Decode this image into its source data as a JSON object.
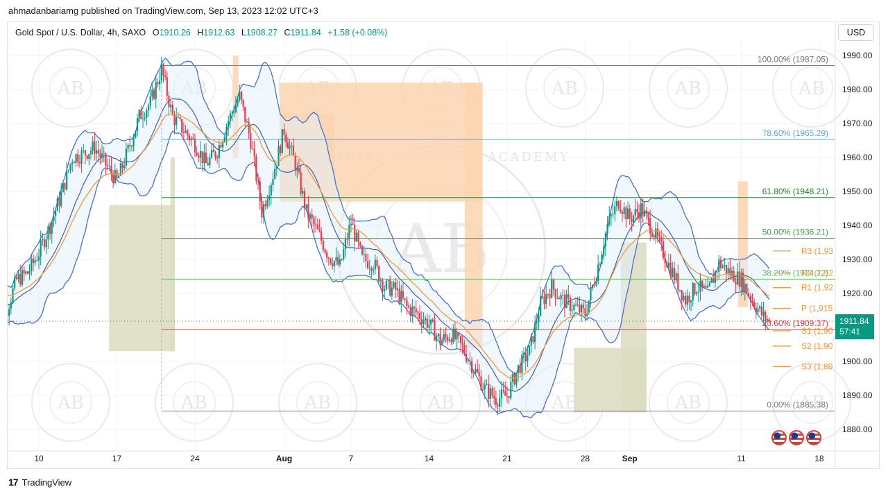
{
  "header": {
    "publish_line": "ahmadanbariamg published on TradingView.com, Sep 13, 2023 12:02 UTC+3"
  },
  "legend": {
    "symbol": "Gold Spot / U.S. Dollar, 4h, SAXO",
    "open_label": "O",
    "open": "1910.26",
    "high_label": "H",
    "high": "1912.63",
    "low_label": "L",
    "low": "1908.27",
    "close_label": "C",
    "close": "1911.84",
    "change": "+1.58 (+0.08%)"
  },
  "currency_button": "USD",
  "price_badge": {
    "price": "1911.84",
    "countdown": "57:41"
  },
  "footer": {
    "brand": "TradingView"
  },
  "watermark": {
    "initials": "AB",
    "name": "ARABIAN BUSINESS ACADEMY"
  },
  "colors": {
    "up": "#089981",
    "down": "#f23645",
    "bollinger": "#4a6fd1",
    "ema": "#f29a36",
    "supply_zone": "#fbd5b0",
    "demand_zone": "#dcdcc0",
    "pivot": "#f29a36"
  },
  "chart_data": {
    "type": "candlestick",
    "timeframe": "4h",
    "y_axis": {
      "min": 1875,
      "max": 1994,
      "ticks": [
        "1880.00",
        "1890.00",
        "1900.00",
        "1910.00",
        "1920.00",
        "1930.00",
        "1940.00",
        "1950.00",
        "1960.00",
        "1970.00",
        "1980.00",
        "1990.00"
      ]
    },
    "x_axis": {
      "labels": [
        {
          "text": "10",
          "day": 10
        },
        {
          "text": "17",
          "day": 17
        },
        {
          "text": "24",
          "day": 24
        },
        {
          "text": "Aug",
          "day": 32,
          "bold": true
        },
        {
          "text": "7",
          "day": 38
        },
        {
          "text": "14",
          "day": 45
        },
        {
          "text": "21",
          "day": 52
        },
        {
          "text": "28",
          "day": 59
        },
        {
          "text": "Sep",
          "day": 63,
          "bold": true
        },
        {
          "text": "11",
          "day": 73
        },
        {
          "text": "18",
          "day": 80
        }
      ]
    },
    "price_path": [
      [
        6,
        1922
      ],
      [
        7,
        1914
      ],
      [
        8,
        1924
      ],
      [
        9,
        1926
      ],
      [
        10,
        1932
      ],
      [
        11,
        1940
      ],
      [
        12,
        1949
      ],
      [
        13,
        1960
      ],
      [
        14,
        1961
      ],
      [
        15,
        1963
      ],
      [
        16,
        1958
      ],
      [
        17,
        1953
      ],
      [
        18,
        1962
      ],
      [
        19,
        1972
      ],
      [
        20,
        1976
      ],
      [
        21,
        1986
      ],
      [
        22,
        1972
      ],
      [
        23,
        1968
      ],
      [
        24,
        1964
      ],
      [
        25,
        1958
      ],
      [
        26,
        1962
      ],
      [
        27,
        1971
      ],
      [
        28,
        1978
      ],
      [
        29,
        1965
      ],
      [
        30,
        1944
      ],
      [
        31,
        1955
      ],
      [
        32,
        1968
      ],
      [
        33,
        1958
      ],
      [
        34,
        1944
      ],
      [
        35,
        1938
      ],
      [
        36,
        1931
      ],
      [
        37,
        1928
      ],
      [
        38,
        1941
      ],
      [
        39,
        1930
      ],
      [
        40,
        1929
      ],
      [
        41,
        1922
      ],
      [
        42,
        1921
      ],
      [
        43,
        1916
      ],
      [
        44,
        1914
      ],
      [
        45,
        1911
      ],
      [
        46,
        1906
      ],
      [
        47,
        1908
      ],
      [
        48,
        1904
      ],
      [
        49,
        1898
      ],
      [
        50,
        1892
      ],
      [
        51,
        1889
      ],
      [
        52,
        1890
      ],
      [
        53,
        1898
      ],
      [
        54,
        1903
      ],
      [
        55,
        1917
      ],
      [
        56,
        1922
      ],
      [
        57,
        1918
      ],
      [
        58,
        1916
      ],
      [
        59,
        1914
      ],
      [
        60,
        1926
      ],
      [
        61,
        1940
      ],
      [
        62,
        1947
      ],
      [
        63,
        1942
      ],
      [
        64,
        1945
      ],
      [
        65,
        1939
      ],
      [
        66,
        1932
      ],
      [
        67,
        1925
      ],
      [
        68,
        1918
      ],
      [
        69,
        1922
      ],
      [
        70,
        1920
      ],
      [
        71,
        1929
      ],
      [
        72,
        1926
      ],
      [
        73,
        1924
      ],
      [
        74,
        1918
      ],
      [
        75,
        1913
      ],
      [
        75.6,
        1912
      ]
    ],
    "fibonacci": [
      {
        "label": "100.00% (1987.05)",
        "price": 1987.05,
        "color": "#787b86"
      },
      {
        "label": "78.60% (1965.29)",
        "price": 1965.29,
        "color": "#5fa8d3"
      },
      {
        "label": "61.80% (1948.21)",
        "price": 1948.21,
        "color": "#2e7d32"
      },
      {
        "label": "50.00% (1936.21)",
        "price": 1936.21,
        "color": "#43a047"
      },
      {
        "label": "38.20% (1924.22)",
        "price": 1924.22,
        "color": "#66bb6a"
      },
      {
        "label": "23.60% (1909.37)",
        "price": 1909.37,
        "color": "#e53935"
      },
      {
        "label": "0.00% (1885.38)",
        "price": 1885.38,
        "color": "#787b86"
      }
    ],
    "pivots": [
      {
        "label": "R3 (1,93",
        "price": 1932.5
      },
      {
        "label": "R2 (1,92",
        "price": 1926
      },
      {
        "label": "R1 (1,92",
        "price": 1921.7
      },
      {
        "label": "P (1,915",
        "price": 1915.6
      },
      {
        "label": "S1 (1,90",
        "price": 1909
      },
      {
        "label": "S2 (1,90",
        "price": 1904.5
      },
      {
        "label": "S3 (1,89",
        "price": 1898.5
      }
    ],
    "supply_zones": [
      {
        "d0": 27.4,
        "d1": 27.9,
        "p0": 1960,
        "p1": 1990
      },
      {
        "d0": 31.6,
        "d1": 36.5,
        "p0": 1947,
        "p1": 1973
      },
      {
        "d0": 31.6,
        "d1": 49.8,
        "p0": 1947,
        "p1": 1982
      },
      {
        "d0": 48.2,
        "d1": 49.8,
        "p0": 1904,
        "p1": 1982
      },
      {
        "d0": 72.7,
        "d1": 73.6,
        "p0": 1916,
        "p1": 1953
      }
    ],
    "demand_zones": [
      {
        "d0": 16.3,
        "d1": 22.2,
        "p0": 1903,
        "p1": 1946
      },
      {
        "d0": 21.8,
        "d1": 22.2,
        "p0": 1903,
        "p1": 1960
      },
      {
        "d0": 58,
        "d1": 64.5,
        "p0": 1885,
        "p1": 1904
      },
      {
        "d0": 62.2,
        "d1": 64.5,
        "p0": 1885,
        "p1": 1935
      }
    ],
    "last_price": 1911.84
  }
}
